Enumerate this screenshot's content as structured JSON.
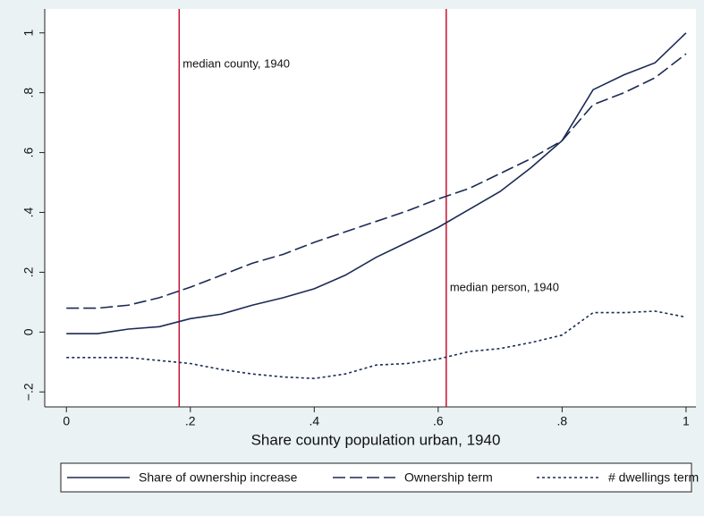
{
  "chart_data": {
    "type": "line",
    "x_label": "Share county population urban, 1940",
    "x": [
      0,
      0.05,
      0.1,
      0.15,
      0.2,
      0.25,
      0.3,
      0.35,
      0.4,
      0.45,
      0.5,
      0.55,
      0.6,
      0.65,
      0.7,
      0.75,
      0.8,
      0.85,
      0.9,
      0.95,
      1
    ],
    "series": [
      {
        "name": "Share of ownership increase",
        "color": "#1b2a55",
        "style": "solid",
        "values": [
          -0.005,
          -0.005,
          0.01,
          0.018,
          0.045,
          0.06,
          0.09,
          0.115,
          0.145,
          0.19,
          0.25,
          0.3,
          0.35,
          0.41,
          0.47,
          0.55,
          0.64,
          0.81,
          0.86,
          0.9,
          1.0
        ]
      },
      {
        "name": "Ownership term",
        "color": "#1b2a55",
        "style": "dashed",
        "values": [
          0.08,
          0.08,
          0.09,
          0.115,
          0.15,
          0.19,
          0.23,
          0.26,
          0.3,
          0.335,
          0.37,
          0.405,
          0.445,
          0.48,
          0.53,
          0.58,
          0.64,
          0.76,
          0.8,
          0.85,
          0.93
        ]
      },
      {
        "name": "# dwellings term",
        "color": "#1b2a55",
        "style": "dotted",
        "values": [
          -0.085,
          -0.085,
          -0.085,
          -0.095,
          -0.105,
          -0.125,
          -0.14,
          -0.15,
          -0.155,
          -0.14,
          -0.11,
          -0.105,
          -0.09,
          -0.065,
          -0.055,
          -0.035,
          -0.01,
          0.065,
          0.065,
          0.07,
          0.05
        ]
      }
    ],
    "reference_lines": [
      {
        "x": 0.182,
        "label": "median county, 1940",
        "color": "#c8102e"
      },
      {
        "x": 0.613,
        "label": "median person, 1940",
        "color": "#c8102e"
      }
    ],
    "xlim": [
      -0.035,
      1.016
    ],
    "ylim": [
      -0.25,
      1.08
    ],
    "xticks": [
      0,
      {
        "value": 0.2,
        "label": ".2"
      },
      {
        "value": 0.4,
        "label": ".4"
      },
      {
        "value": 0.6,
        "label": ".6"
      },
      {
        "value": 0.8,
        "label": ".8"
      },
      1
    ],
    "yticks": [
      {
        "value": -0.2,
        "label": "−.2"
      },
      0,
      {
        "value": 0.2,
        "label": ".2"
      },
      {
        "value": 0.4,
        "label": ".4"
      },
      {
        "value": 0.6,
        "label": ".6"
      },
      {
        "value": 0.8,
        "label": ".8"
      },
      1
    ],
    "grid": false,
    "legend": "bottom"
  }
}
